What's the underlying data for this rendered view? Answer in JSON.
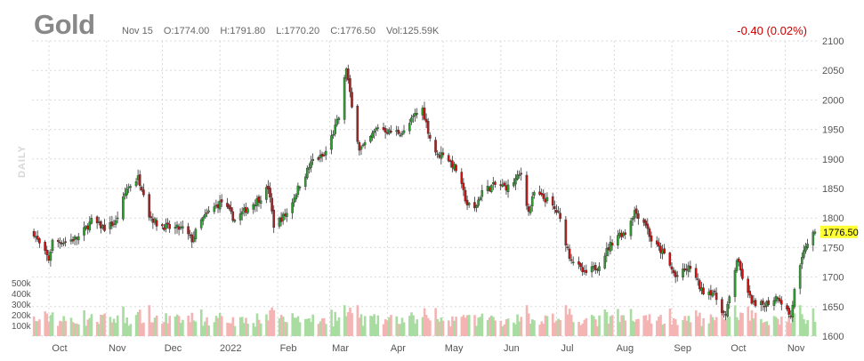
{
  "header": {
    "title": "Gold",
    "date": "Nov 15",
    "open": "O:1774.00",
    "high": "H:1791.80",
    "low": "L:1770.20",
    "close": "C:1776.50",
    "volume": "Vol:125.59K",
    "change": "-0.40 (0.02%)",
    "period": "DAILY"
  },
  "colors": {
    "up": "#2ca02c",
    "down": "#cc1111",
    "vol_up": "#a8dca0",
    "vol_down": "#f4b4b4",
    "last_price_bg": "#ffff33",
    "change": "#cc0000"
  },
  "chart_data": {
    "type": "candlestick",
    "title": "Gold",
    "y_ticks": [
      1600,
      1650,
      1700,
      1750,
      1800,
      1850,
      1900,
      1950,
      2000,
      2050,
      2100
    ],
    "ylim": [
      1600,
      2100
    ],
    "volume_ticks": [
      "100k",
      "200k",
      "300k",
      "400k",
      "500k"
    ],
    "volume_range": [
      0,
      500
    ],
    "months": [
      "Oct",
      "Nov",
      "Dec",
      "2022",
      "Feb",
      "Mar",
      "Apr",
      "May",
      "Jun",
      "Jul",
      "Aug",
      "Sep",
      "Oct",
      "Nov"
    ],
    "last_price": "1776.50",
    "close_path": [
      [
        "Sep 21 2021",
        1775
      ],
      [
        "Sep 24 2021",
        1755
      ],
      [
        "Sep 29 2021",
        1730
      ],
      [
        "Oct 1 2021",
        1760
      ],
      [
        "Oct 8 2021",
        1760
      ],
      [
        "Oct 15 2021",
        1767
      ],
      [
        "Oct 22 2021",
        1795
      ],
      [
        "Oct 29 2021",
        1783
      ],
      [
        "Nov 4 2021",
        1793
      ],
      [
        "Nov 10 2021",
        1850
      ],
      [
        "Nov 16 2021",
        1868
      ],
      [
        "Nov 19 2021",
        1845
      ],
      [
        "Nov 22 2021",
        1805
      ],
      [
        "Nov 26 2021",
        1790
      ],
      [
        "Dec 3 2021",
        1783
      ],
      [
        "Dec 10 2021",
        1782
      ],
      [
        "Dec 15 2021",
        1763
      ],
      [
        "Dec 20 2021",
        1795
      ],
      [
        "Dec 24 2021",
        1810
      ],
      [
        "Dec 31 2021",
        1828
      ],
      [
        "Jan 7 2022",
        1797
      ],
      [
        "Jan 14 2022",
        1817
      ],
      [
        "Jan 21 2022",
        1835
      ],
      [
        "Jan 25 2022",
        1852
      ],
      [
        "Jan 28 2022",
        1788
      ],
      [
        "Feb 4 2022",
        1808
      ],
      [
        "Feb 11 2022",
        1857
      ],
      [
        "Feb 18 2022",
        1898
      ],
      [
        "Feb 24 2022",
        1905
      ],
      [
        "Mar 1 2022",
        1945
      ],
      [
        "Mar 4 2022",
        1970
      ],
      [
        "Mar 8 2022",
        2055
      ],
      [
        "Mar 11 2022",
        1986
      ],
      [
        "Mar 15 2022",
        1918
      ],
      [
        "Mar 18 2022",
        1922
      ],
      [
        "Mar 25 2022",
        1955
      ],
      [
        "Mar 31 2022",
        1946
      ],
      [
        "Apr 8 2022",
        1945
      ],
      [
        "Apr 14 2022",
        1975
      ],
      [
        "Apr 18 2022",
        1985
      ],
      [
        "Apr 22 2022",
        1936
      ],
      [
        "Apr 26 2022",
        1905
      ],
      [
        "Apr 29 2022",
        1911
      ],
      [
        "May 6 2022",
        1882
      ],
      [
        "May 12 2022",
        1823
      ],
      [
        "May 16 2022",
        1815
      ],
      [
        "May 20 2022",
        1846
      ],
      [
        "May 27 2022",
        1856
      ],
      [
        "Jun 3 2022",
        1852
      ],
      [
        "Jun 10 2022",
        1875
      ],
      [
        "Jun 14 2022",
        1810
      ],
      [
        "Jun 17 2022",
        1842
      ],
      [
        "Jun 24 2022",
        1830
      ],
      [
        "Jun 30 2022",
        1807
      ],
      [
        "Jul 6 2022",
        1736
      ],
      [
        "Jul 14 2022",
        1705
      ],
      [
        "Jul 21 2022",
        1718
      ],
      [
        "Jul 28 2022",
        1755
      ],
      [
        "Aug 1 2022",
        1772
      ],
      [
        "Aug 5 2022",
        1775
      ],
      [
        "Aug 10 2022",
        1812
      ],
      [
        "Aug 16 2022",
        1790
      ],
      [
        "Aug 19 2022",
        1762
      ],
      [
        "Aug 26 2022",
        1738
      ],
      [
        "Sep 1 2022",
        1700
      ],
      [
        "Sep 9 2022",
        1717
      ],
      [
        "Sep 15 2022",
        1677
      ],
      [
        "Sep 21 2022",
        1675
      ],
      [
        "Sep 28 2022",
        1633
      ],
      [
        "Oct 4 2022",
        1730
      ],
      [
        "Oct 10 2022",
        1670
      ],
      [
        "Oct 14 2022",
        1650
      ],
      [
        "Oct 21 2022",
        1657
      ],
      [
        "Oct 26 2022",
        1668
      ],
      [
        "Nov 2 2022",
        1633
      ],
      [
        "Nov 4 2022",
        1676
      ],
      [
        "Nov 10 2022",
        1754
      ],
      [
        "Nov 15 2022",
        1776.5
      ]
    ]
  }
}
